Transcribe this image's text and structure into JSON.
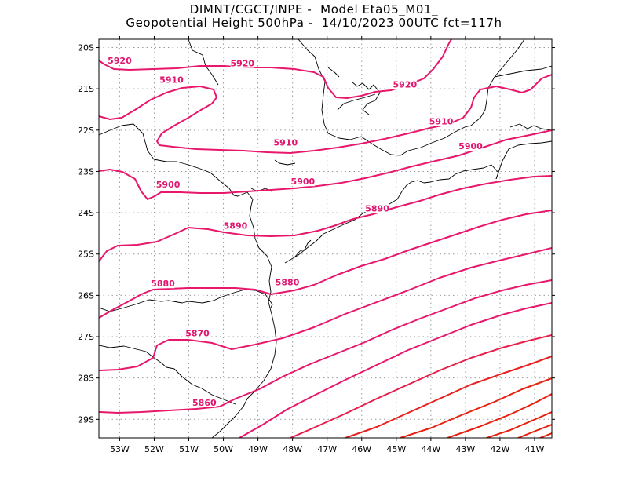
{
  "title": {
    "line1": "DIMNT/CGCT/INPE -  Model Eta05_M01_",
    "line2": "Geopotential Height 500hPa -  14/10/2023 00UTC fct=117h"
  },
  "colors": {
    "contour_magenta": "#e8176b",
    "contour_red": "#e8200e",
    "coast": "#000000",
    "grid": "#9a9a9a"
  },
  "map": {
    "lon_range": [
      -53.6,
      -40.5
    ],
    "lat_range": [
      -29.45,
      -19.8
    ],
    "lon_ticks": [
      {
        "value": -53,
        "label": "53W"
      },
      {
        "value": -52,
        "label": "52W"
      },
      {
        "value": -51,
        "label": "51W"
      },
      {
        "value": -50,
        "label": "50W"
      },
      {
        "value": -49,
        "label": "49W"
      },
      {
        "value": -48,
        "label": "48W"
      },
      {
        "value": -47,
        "label": "47W"
      },
      {
        "value": -46,
        "label": "46W"
      },
      {
        "value": -45,
        "label": "45W"
      },
      {
        "value": -44,
        "label": "44W"
      },
      {
        "value": -43,
        "label": "43W"
      },
      {
        "value": -42,
        "label": "42W"
      },
      {
        "value": -41,
        "label": "41W"
      }
    ],
    "lat_ticks": [
      {
        "value": -20,
        "label": "20S"
      },
      {
        "value": -21,
        "label": "21S"
      },
      {
        "value": -22,
        "label": "22S"
      },
      {
        "value": -23,
        "label": "23S"
      },
      {
        "value": -24,
        "label": "24S"
      },
      {
        "value": -25,
        "label": "25S"
      },
      {
        "value": -26,
        "label": "26S"
      },
      {
        "value": -27,
        "label": "27S"
      },
      {
        "value": -28,
        "label": "28S"
      },
      {
        "value": -29,
        "label": "29S"
      }
    ],
    "contour_labels": [
      {
        "text": "5920",
        "lon": -53.0,
        "lat": -20.35
      },
      {
        "text": "5920",
        "lon": -49.45,
        "lat": -20.42
      },
      {
        "text": "5920",
        "lon": -44.75,
        "lat": -20.93
      },
      {
        "text": "5910",
        "lon": -51.5,
        "lat": -20.82
      },
      {
        "text": "5910",
        "lon": -48.2,
        "lat": -22.34
      },
      {
        "text": "5910",
        "lon": -43.7,
        "lat": -21.82
      },
      {
        "text": "5900",
        "lon": -51.6,
        "lat": -23.35
      },
      {
        "text": "5900",
        "lon": -47.7,
        "lat": -23.28
      },
      {
        "text": "5900",
        "lon": -42.85,
        "lat": -22.42
      },
      {
        "text": "5890",
        "lon": -49.65,
        "lat": -24.35
      },
      {
        "text": "5890",
        "lon": -45.55,
        "lat": -23.93
      },
      {
        "text": "5880",
        "lon": -51.75,
        "lat": -25.75
      },
      {
        "text": "5880",
        "lon": -48.15,
        "lat": -25.72
      },
      {
        "text": "5870",
        "lon": -50.75,
        "lat": -26.95
      },
      {
        "text": "5860",
        "lon": -50.55,
        "lat": -28.63
      }
    ]
  }
}
